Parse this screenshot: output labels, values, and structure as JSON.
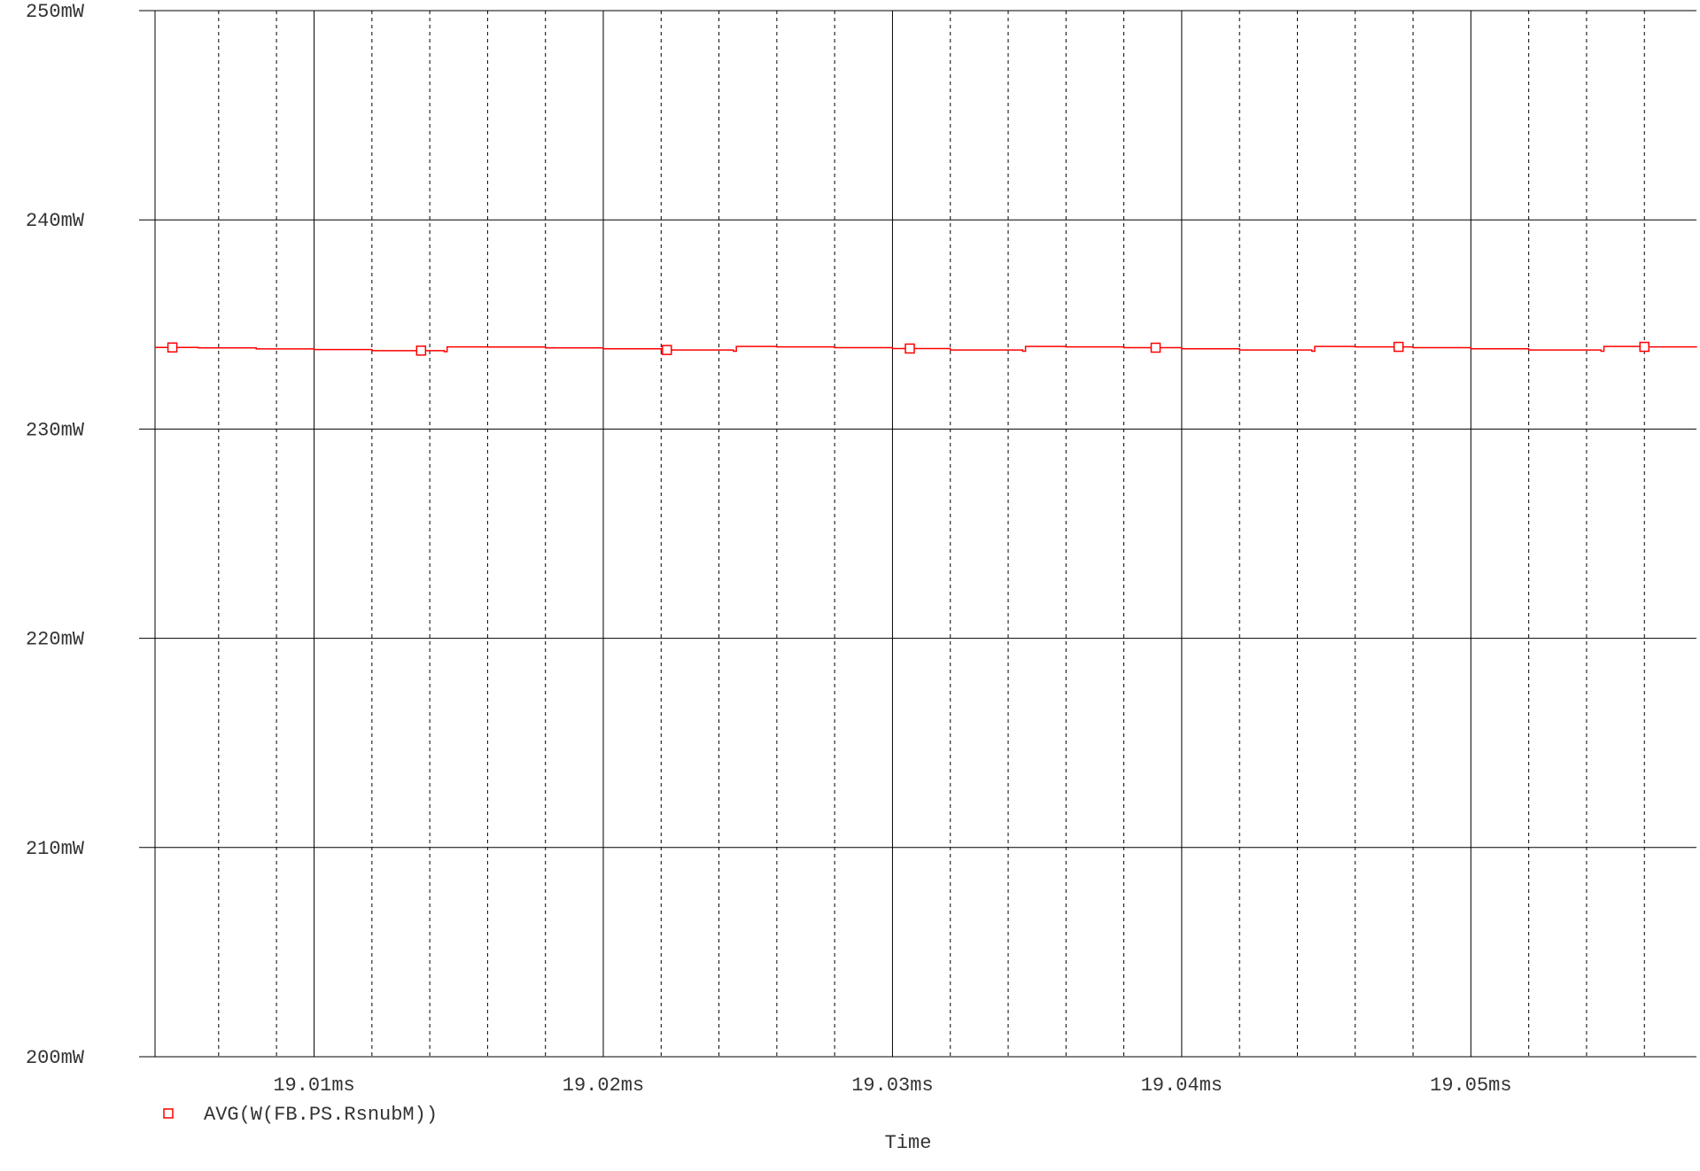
{
  "chart_data": {
    "type": "line",
    "title": "",
    "xlabel": "Time",
    "ylabel": "",
    "x_unit": "ms",
    "y_unit": "mW",
    "xlim": [
      19.0045,
      19.0578
    ],
    "ylim": [
      200,
      250
    ],
    "y_ticks": [
      200,
      210,
      220,
      230,
      240,
      250
    ],
    "y_tick_labels": [
      "200mW",
      "210mW",
      "220mW",
      "230mW",
      "240mW",
      "250mW"
    ],
    "x_ticks": [
      19.01,
      19.02,
      19.03,
      19.04,
      19.05
    ],
    "x_tick_labels": [
      "19.01ms",
      "19.02ms",
      "19.03ms",
      "19.04ms",
      "19.05ms"
    ],
    "x_minor_ticks": [
      19.0067,
      19.0087,
      19.012,
      19.014,
      19.016,
      19.018,
      19.022,
      19.024,
      19.026,
      19.028,
      19.032,
      19.034,
      19.036,
      19.038,
      19.042,
      19.044,
      19.046,
      19.048,
      19.052,
      19.054,
      19.056
    ],
    "grid": true,
    "legend_position": "bottom-left",
    "series": [
      {
        "name": "AVG(W(FB.PS.RsnubM))",
        "color": "#ff0000",
        "marker": "square",
        "marker_x": [
          19.0051,
          19.0137,
          19.0222,
          19.0306,
          19.0391,
          19.0475,
          19.056
        ],
        "x": [
          19.0045,
          19.006,
          19.008,
          19.01,
          19.012,
          19.0145,
          19.0146,
          19.016,
          19.018,
          19.02,
          19.022,
          19.0245,
          19.0246,
          19.026,
          19.028,
          19.03,
          19.032,
          19.0345,
          19.0346,
          19.036,
          19.038,
          19.04,
          19.042,
          19.0445,
          19.0446,
          19.046,
          19.048,
          19.05,
          19.052,
          19.0545,
          19.0546,
          19.056,
          19.0578
        ],
        "y": [
          233.9,
          233.88,
          233.83,
          233.8,
          233.75,
          233.7,
          233.93,
          233.92,
          233.88,
          233.84,
          233.78,
          233.72,
          233.95,
          233.93,
          233.89,
          233.85,
          233.78,
          233.72,
          233.95,
          233.93,
          233.89,
          233.84,
          233.78,
          233.72,
          233.95,
          233.93,
          233.89,
          233.84,
          233.78,
          233.72,
          233.95,
          233.93,
          233.9
        ]
      }
    ]
  }
}
